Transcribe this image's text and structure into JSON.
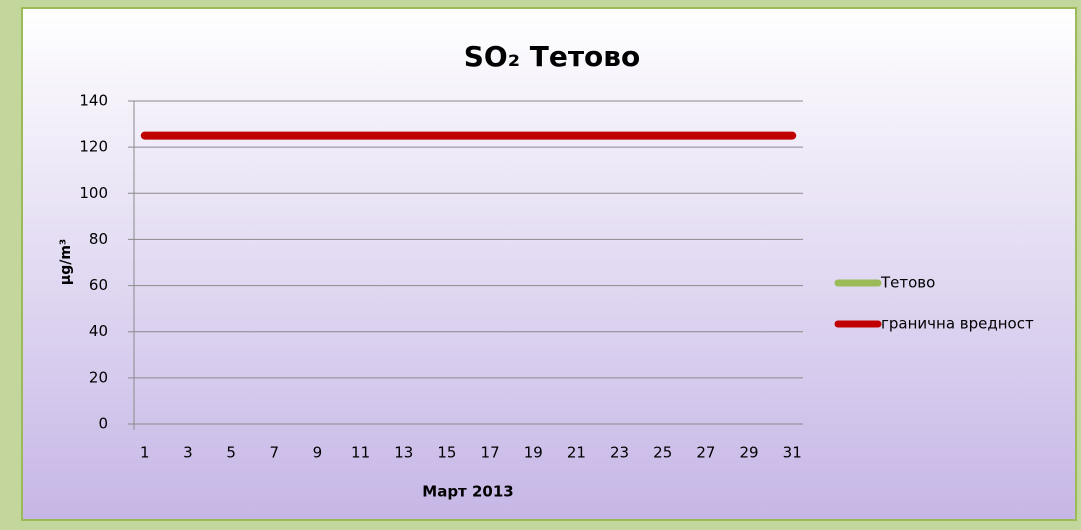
{
  "chart_data": {
    "type": "line",
    "title": "SO₂ Тетово",
    "ylabel": "µg/m³",
    "xlabel": "Март 2013",
    "categories": [
      "1",
      null,
      "3",
      null,
      "5",
      null,
      "7",
      null,
      "9",
      null,
      "11",
      null,
      "13",
      null,
      "15",
      null,
      "17",
      null,
      "19",
      null,
      "21",
      null,
      "23",
      null,
      "25",
      null,
      "27",
      null,
      "29",
      null,
      "31"
    ],
    "series": [
      {
        "name": "Тетово",
        "color": "#9bbb59",
        "values": [
          null,
          null,
          null,
          null,
          null,
          null,
          null,
          null,
          null,
          null,
          null,
          null,
          null,
          null,
          null,
          null,
          null,
          null,
          null,
          null,
          null,
          null,
          null,
          null,
          null,
          null,
          null,
          null,
          null,
          null,
          null
        ]
      },
      {
        "name": "гранична вредност",
        "color": "#c00000",
        "values": [
          125,
          125,
          125,
          125,
          125,
          125,
          125,
          125,
          125,
          125,
          125,
          125,
          125,
          125,
          125,
          125,
          125,
          125,
          125,
          125,
          125,
          125,
          125,
          125,
          125,
          125,
          125,
          125,
          125,
          125,
          125
        ]
      }
    ],
    "ylim": [
      0,
      140
    ],
    "yticks": [
      0,
      20,
      40,
      60,
      80,
      100,
      120,
      140
    ],
    "grid": true,
    "legend": "right"
  }
}
